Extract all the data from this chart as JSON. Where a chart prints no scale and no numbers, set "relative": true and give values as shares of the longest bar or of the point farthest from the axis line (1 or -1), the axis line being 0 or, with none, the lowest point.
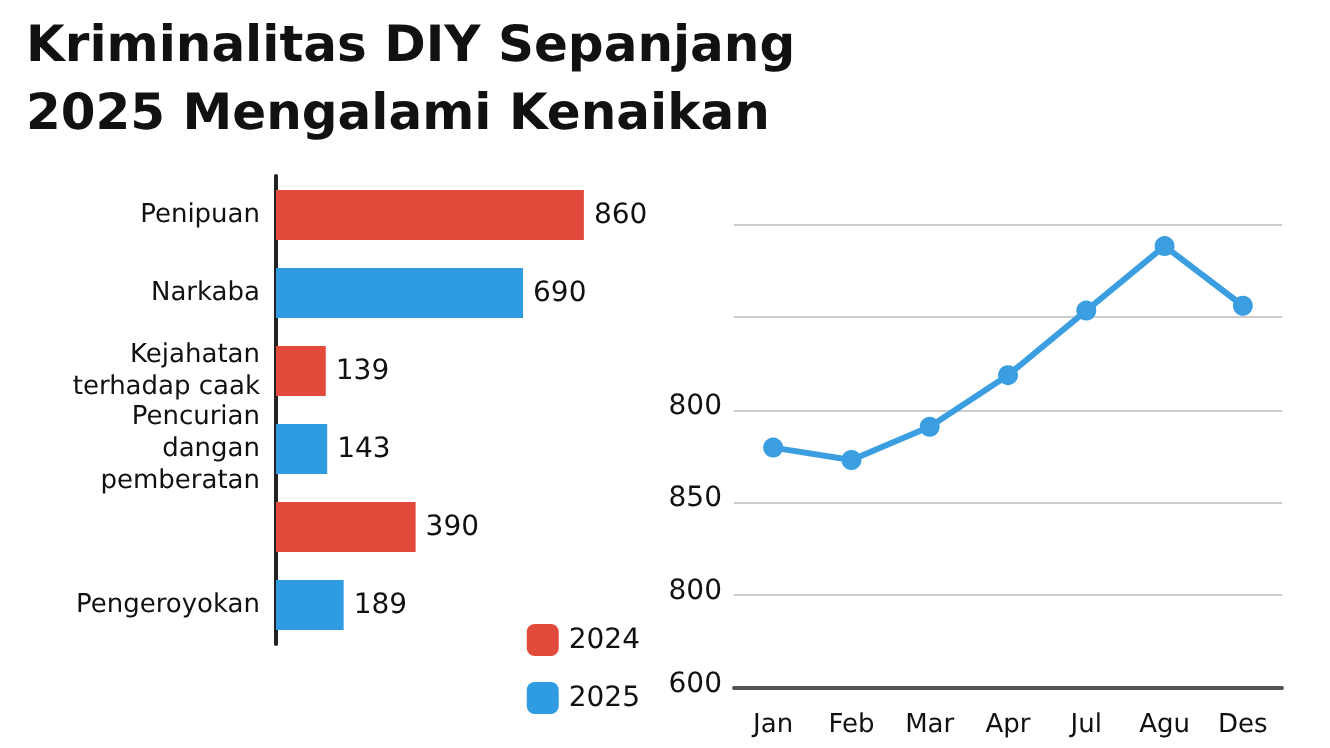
{
  "chart_data": [
    {
      "type": "bar",
      "title": "Kriminalitas DIY Sepanjang 2025 Mengalami Kenaikan",
      "orientation": "horizontal",
      "categories": [
        "Penipuan",
        "Narkaba",
        "Kejahatan\nterhadap caak",
        "Pencurian\ndangan\npemberatan",
        null,
        "Pengeroyokan"
      ],
      "series": [
        {
          "name": "2024",
          "color": "#e24a3b",
          "values": [
            860,
            null,
            139,
            null,
            390,
            null
          ]
        },
        {
          "name": "2025",
          "color": "#2f9be0",
          "values": [
            null,
            690,
            null,
            143,
            null,
            189
          ]
        }
      ],
      "data_labels": true,
      "legend": "bottom right"
    },
    {
      "type": "line",
      "categories": [
        "Jan",
        "Feb",
        "Mar",
        "Apr",
        "Jul",
        "Agu",
        "Des"
      ],
      "series": [
        {
          "color": "#3a9ee0",
          "values": [
            0.544,
            0.516,
            0.591,
            0.708,
            0.854,
            1,
            0.865
          ]
        }
      ],
      "relative": true,
      "annotations": [
        "600",
        "800",
        "850",
        "800"
      ],
      "grid": "y",
      "marker": "circle",
      "line_style": "solid"
    }
  ]
}
